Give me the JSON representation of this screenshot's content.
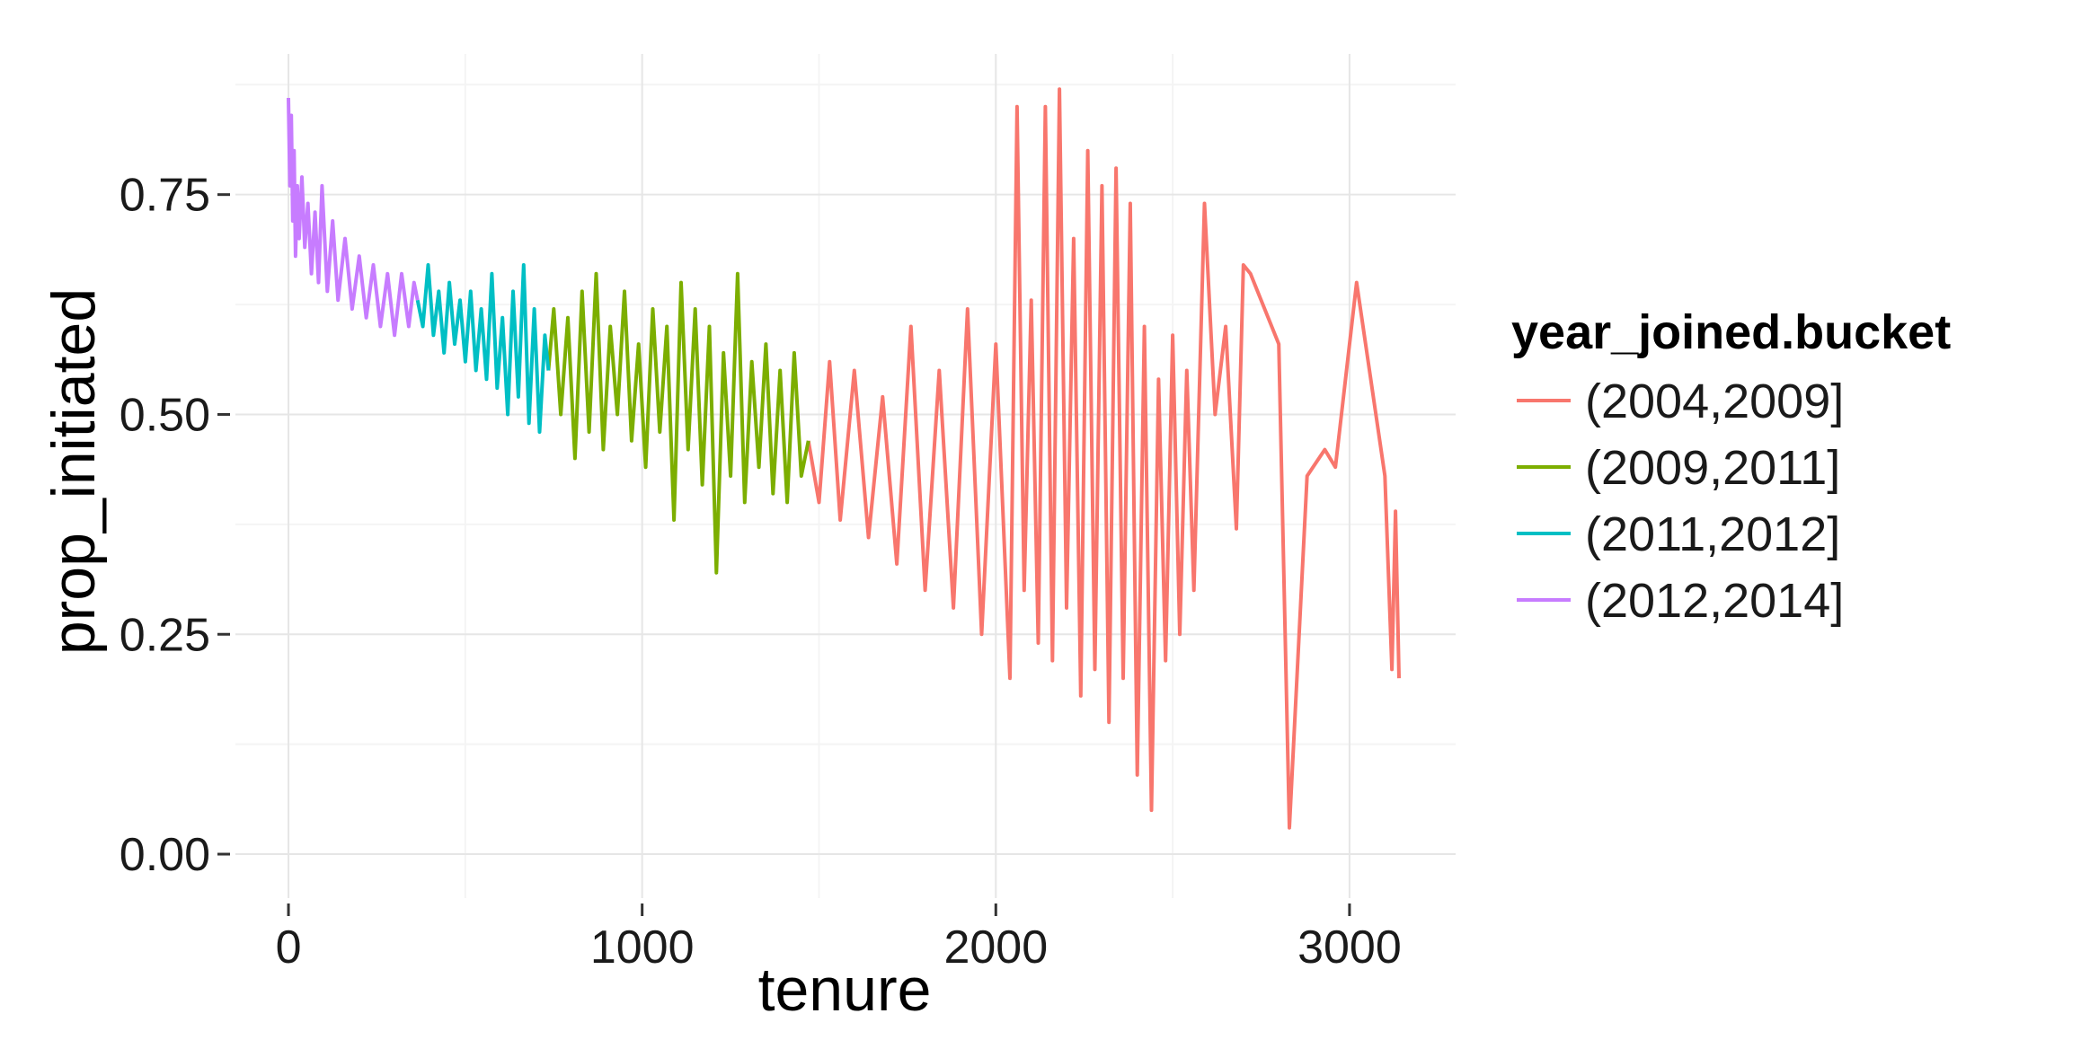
{
  "chart_data": {
    "type": "line",
    "xlabel": "tenure",
    "ylabel": "prop_initiated",
    "xlim": [
      -150,
      3300
    ],
    "ylim": [
      -0.05,
      0.91
    ],
    "x_ticks": [
      0,
      1000,
      2000,
      3000
    ],
    "x_tick_labels": [
      "0",
      "1000",
      "2000",
      "3000"
    ],
    "y_ticks": [
      0,
      0.25,
      0.5,
      0.75
    ],
    "y_tick_labels": [
      "0.00",
      "0.25",
      "0.50",
      "0.75"
    ],
    "grid": true,
    "legend": {
      "title": "year_joined.bucket",
      "position": "right"
    },
    "series": [
      {
        "name": "(2004,2009]",
        "color": "#F8766D",
        "x": [
          1470,
          1500,
          1530,
          1560,
          1600,
          1640,
          1680,
          1720,
          1760,
          1800,
          1840,
          1880,
          1920,
          1960,
          2000,
          2040,
          2060,
          2080,
          2100,
          2120,
          2140,
          2160,
          2180,
          2200,
          2220,
          2240,
          2260,
          2280,
          2300,
          2320,
          2340,
          2360,
          2380,
          2400,
          2420,
          2440,
          2460,
          2480,
          2500,
          2520,
          2540,
          2560,
          2590,
          2620,
          2650,
          2680,
          2700,
          2720,
          2800,
          2830,
          2880,
          2930,
          2960,
          3020,
          3100,
          3120,
          3130,
          3140
        ],
        "y": [
          0.47,
          0.4,
          0.56,
          0.38,
          0.55,
          0.36,
          0.52,
          0.33,
          0.6,
          0.3,
          0.55,
          0.28,
          0.62,
          0.25,
          0.58,
          0.2,
          0.85,
          0.3,
          0.63,
          0.24,
          0.85,
          0.22,
          0.87,
          0.28,
          0.7,
          0.18,
          0.8,
          0.21,
          0.76,
          0.15,
          0.78,
          0.2,
          0.74,
          0.09,
          0.6,
          0.05,
          0.54,
          0.22,
          0.59,
          0.25,
          0.55,
          0.3,
          0.74,
          0.5,
          0.6,
          0.37,
          0.67,
          0.66,
          0.58,
          0.03,
          0.43,
          0.46,
          0.44,
          0.65,
          0.43,
          0.21,
          0.39,
          0.2
        ]
      },
      {
        "name": "(2009,2011]",
        "color": "#7CAE00",
        "x": [
          735,
          750,
          770,
          790,
          810,
          830,
          850,
          870,
          890,
          910,
          930,
          950,
          970,
          990,
          1010,
          1030,
          1050,
          1070,
          1090,
          1110,
          1130,
          1150,
          1170,
          1190,
          1210,
          1230,
          1250,
          1270,
          1290,
          1310,
          1330,
          1350,
          1370,
          1390,
          1410,
          1430,
          1450,
          1470
        ],
        "y": [
          0.55,
          0.62,
          0.5,
          0.61,
          0.45,
          0.64,
          0.48,
          0.66,
          0.46,
          0.6,
          0.5,
          0.64,
          0.47,
          0.58,
          0.44,
          0.62,
          0.48,
          0.6,
          0.38,
          0.65,
          0.46,
          0.62,
          0.42,
          0.6,
          0.32,
          0.57,
          0.43,
          0.66,
          0.4,
          0.56,
          0.44,
          0.58,
          0.41,
          0.55,
          0.4,
          0.57,
          0.43,
          0.47
        ]
      },
      {
        "name": "(2011,2012]",
        "color": "#00BFC4",
        "x": [
          365,
          380,
          395,
          410,
          425,
          440,
          455,
          470,
          485,
          500,
          515,
          530,
          545,
          560,
          575,
          590,
          605,
          620,
          635,
          650,
          665,
          680,
          695,
          710,
          725,
          735
        ],
        "y": [
          0.63,
          0.6,
          0.67,
          0.59,
          0.64,
          0.57,
          0.65,
          0.58,
          0.63,
          0.56,
          0.64,
          0.55,
          0.62,
          0.54,
          0.66,
          0.53,
          0.61,
          0.5,
          0.64,
          0.52,
          0.67,
          0.49,
          0.62,
          0.48,
          0.59,
          0.55
        ]
      },
      {
        "name": "(2012,2014]",
        "color": "#C77CFF",
        "x": [
          0,
          4,
          8,
          12,
          16,
          20,
          25,
          30,
          38,
          46,
          55,
          65,
          75,
          85,
          95,
          110,
          125,
          140,
          160,
          180,
          200,
          220,
          240,
          260,
          280,
          300,
          320,
          340,
          355,
          365
        ],
        "y": [
          0.86,
          0.76,
          0.84,
          0.72,
          0.8,
          0.68,
          0.76,
          0.7,
          0.77,
          0.69,
          0.74,
          0.66,
          0.73,
          0.65,
          0.76,
          0.64,
          0.72,
          0.63,
          0.7,
          0.62,
          0.68,
          0.61,
          0.67,
          0.6,
          0.66,
          0.59,
          0.66,
          0.6,
          0.65,
          0.63
        ]
      }
    ]
  }
}
